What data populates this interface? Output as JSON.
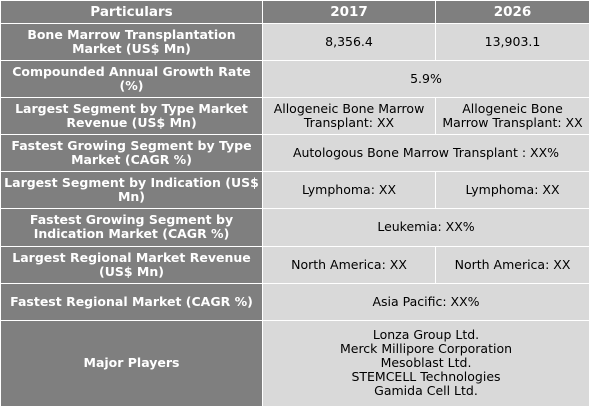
{
  "header": {
    "particulars": "Particulars",
    "year_1": "2017",
    "year_2": "2026"
  },
  "rows": {
    "market": {
      "label": "Bone Marrow Transplantation Market (US$ Mn)",
      "v2017": "8,356.4",
      "v2026": "13,903.1"
    },
    "cagr": {
      "label": "Compounded Annual Growth Rate (%)",
      "value": "5.9%"
    },
    "largest_type": {
      "label": "Largest Segment by Type Market Revenue (US$ Mn)",
      "v2017": "Allogeneic Bone Marrow Transplant: XX",
      "v2026": "Allogeneic Bone Marrow Transplant: XX"
    },
    "fastest_type": {
      "label": "Fastest Growing Segment by Type Market (CAGR %)",
      "value": "Autologous Bone Marrow Transplant :  XX%"
    },
    "largest_indication": {
      "label": "Largest Segment by Indication (US$ Mn)",
      "v2017": "Lymphoma:  XX",
      "v2026": "Lymphoma:  XX"
    },
    "fastest_indication": {
      "label": "Fastest Growing Segment by Indication Market (CAGR %)",
      "value": "Leukemia:  XX%"
    },
    "largest_region": {
      "label": "Largest Regional Market Revenue (US$ Mn)",
      "v2017": "North America: XX",
      "v2026": "North America: XX"
    },
    "fastest_region": {
      "label": "Fastest Regional Market (CAGR %)",
      "value": "Asia Pacific: XX%"
    },
    "players": {
      "label": "Major Players",
      "list": [
        "Lonza Group Ltd.",
        "Merck Millipore Corporation",
        "Mesoblast Ltd.",
        "STEMCELL Technologies",
        "Gamida Cell Ltd."
      ]
    }
  },
  "colors": {
    "label_bg": "#7f7f7f",
    "value_bg": "#d9d9d9",
    "border": "#ffffff"
  }
}
